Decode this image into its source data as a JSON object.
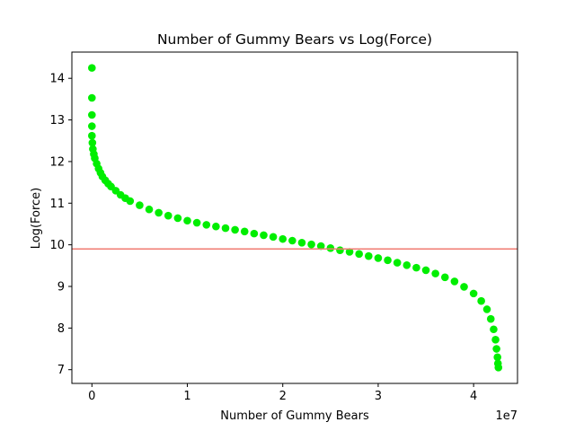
{
  "chart_data": {
    "type": "scatter",
    "title": "Number of Gummy Bears vs Log(Force)",
    "xlabel": "Number of Gummy Bears",
    "ylabel": "Log(Force)",
    "x_offset_label": "1e7",
    "xlim": [
      -2100000,
      44600000
    ],
    "ylim": [
      6.67,
      14.63
    ],
    "xticks": [
      {
        "value": 0,
        "label": "0"
      },
      {
        "value": 10000000,
        "label": "1"
      },
      {
        "value": 20000000,
        "label": "2"
      },
      {
        "value": 30000000,
        "label": "3"
      },
      {
        "value": 40000000,
        "label": "4"
      }
    ],
    "yticks": [
      {
        "value": 7,
        "label": "7"
      },
      {
        "value": 8,
        "label": "8"
      },
      {
        "value": 9,
        "label": "9"
      },
      {
        "value": 10,
        "label": "10"
      },
      {
        "value": 11,
        "label": "11"
      },
      {
        "value": 12,
        "label": "12"
      },
      {
        "value": 13,
        "label": "13"
      },
      {
        "value": 14,
        "label": "14"
      }
    ],
    "grid": false,
    "series": [
      {
        "color": "#00ee00",
        "marker": "circle",
        "points": [
          [
            0,
            14.25
          ],
          [
            0,
            13.53
          ],
          [
            0,
            13.12
          ],
          [
            0,
            12.85
          ],
          [
            0,
            12.62
          ],
          [
            50000,
            12.45
          ],
          [
            100000,
            12.3
          ],
          [
            200000,
            12.18
          ],
          [
            300000,
            12.08
          ],
          [
            500000,
            11.95
          ],
          [
            700000,
            11.83
          ],
          [
            900000,
            11.73
          ],
          [
            1100000,
            11.64
          ],
          [
            1400000,
            11.55
          ],
          [
            1700000,
            11.47
          ],
          [
            2000000,
            11.4
          ],
          [
            2500000,
            11.3
          ],
          [
            3000000,
            11.2
          ],
          [
            3500000,
            11.12
          ],
          [
            4000000,
            11.05
          ],
          [
            5000000,
            10.95
          ],
          [
            6000000,
            10.85
          ],
          [
            7000000,
            10.77
          ],
          [
            8000000,
            10.7
          ],
          [
            9000000,
            10.64
          ],
          [
            10000000,
            10.58
          ],
          [
            11000000,
            10.53
          ],
          [
            12000000,
            10.48
          ],
          [
            13000000,
            10.44
          ],
          [
            14000000,
            10.4
          ],
          [
            15000000,
            10.36
          ],
          [
            16000000,
            10.32
          ],
          [
            17000000,
            10.27
          ],
          [
            18000000,
            10.23
          ],
          [
            19000000,
            10.19
          ],
          [
            20000000,
            10.14
          ],
          [
            21000000,
            10.1
          ],
          [
            22000000,
            10.05
          ],
          [
            23000000,
            10.01
          ],
          [
            24000000,
            9.97
          ],
          [
            25000000,
            9.92
          ],
          [
            26000000,
            9.87
          ],
          [
            27000000,
            9.83
          ],
          [
            28000000,
            9.78
          ],
          [
            29000000,
            9.73
          ],
          [
            30000000,
            9.68
          ],
          [
            31000000,
            9.63
          ],
          [
            32000000,
            9.57
          ],
          [
            33000000,
            9.51
          ],
          [
            34000000,
            9.45
          ],
          [
            35000000,
            9.39
          ],
          [
            36000000,
            9.31
          ],
          [
            37000000,
            9.22
          ],
          [
            38000000,
            9.12
          ],
          [
            39000000,
            8.99
          ],
          [
            40000000,
            8.83
          ],
          [
            40800000,
            8.65
          ],
          [
            41400000,
            8.45
          ],
          [
            41800000,
            8.22
          ],
          [
            42100000,
            7.97
          ],
          [
            42300000,
            7.72
          ],
          [
            42400000,
            7.5
          ],
          [
            42500000,
            7.3
          ],
          [
            42550000,
            7.15
          ],
          [
            42600000,
            7.05
          ]
        ]
      }
    ],
    "hline": {
      "y": 9.9,
      "color": "#f07b72"
    }
  }
}
